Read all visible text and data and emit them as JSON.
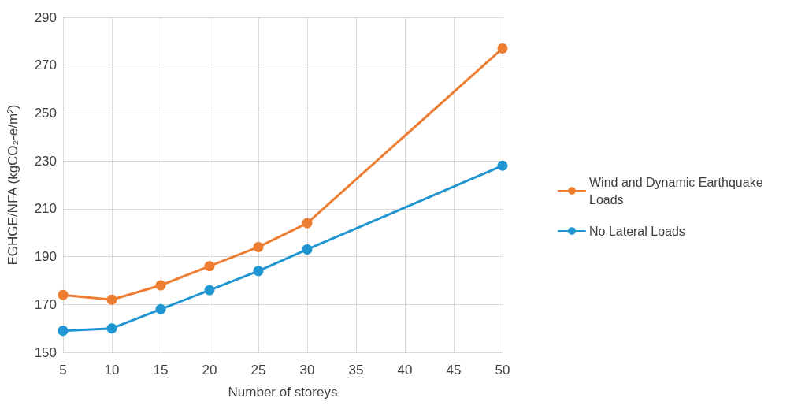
{
  "chart_data": {
    "type": "line",
    "xlabel": "Number of storeys",
    "ylabel": "EGHGE/NFA (kgCO₂-e/m²)",
    "categories": [
      "5",
      "10",
      "15",
      "20",
      "25",
      "30",
      "35",
      "40",
      "45",
      "50"
    ],
    "series": [
      {
        "name": "Wind and Dynamic Earthquake Loads",
        "color": "#ed7d31",
        "values": [
          174,
          172,
          178,
          186,
          194,
          204,
          null,
          null,
          null,
          277
        ]
      },
      {
        "name": "No Lateral Loads",
        "color": "#1f96d2",
        "values": [
          159,
          160,
          168,
          176,
          184,
          193,
          null,
          null,
          null,
          228
        ]
      }
    ],
    "ylim": [
      150,
      290
    ],
    "yticks": [
      150,
      170,
      190,
      210,
      230,
      250,
      270,
      290
    ],
    "grid": true,
    "legend": "right",
    "marker": "circle",
    "line_style": "solid"
  }
}
